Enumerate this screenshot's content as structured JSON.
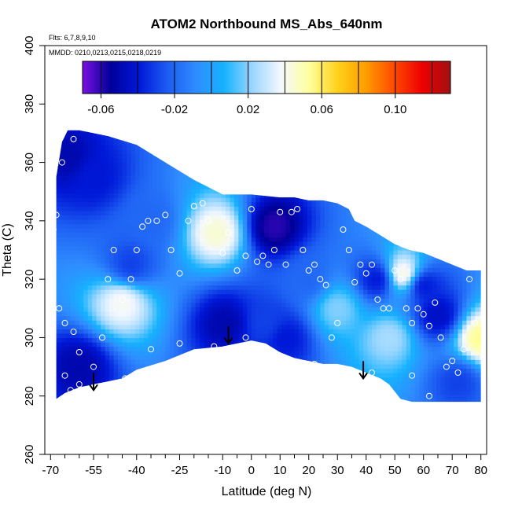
{
  "chart_data": {
    "type": "heatmap",
    "title": "ATOM2 Northbound MS_Abs_640nm",
    "flights_note": "Flts: 6,7,8,9,10",
    "dates_note": "MMDD: 0210,0213,0215,0218,0219",
    "xlabel": "Latitude (deg N)",
    "ylabel": "Theta (C)",
    "xlim": [
      -72,
      82
    ],
    "ylim": [
      260,
      400
    ],
    "x_ticks": [
      -70,
      -55,
      -40,
      -25,
      -10,
      0,
      10,
      20,
      30,
      40,
      50,
      60,
      70,
      80
    ],
    "x_tick_labels": [
      "-70",
      "-55",
      "-40",
      "-25",
      "-10",
      "0",
      "10",
      "20",
      "30",
      "40",
      "50",
      "60",
      "70",
      "80"
    ],
    "x_minor_ticks": [
      -65,
      -60,
      -50,
      -45,
      -35,
      -30,
      -20,
      -15,
      -5,
      5,
      15,
      25,
      35,
      45,
      55,
      65,
      75
    ],
    "y_ticks": [
      260,
      280,
      300,
      320,
      340,
      360,
      380,
      400
    ],
    "y_tick_labels": [
      "260",
      "280",
      "300",
      "320",
      "340",
      "360",
      "380",
      "400"
    ],
    "colorbar": {
      "range": [
        -0.07,
        0.13
      ],
      "ticks": [
        -0.06,
        -0.02,
        0.02,
        0.06,
        0.1
      ],
      "tick_labels": [
        "-0.06",
        "-0.02",
        "0.02",
        "0.06",
        "0.10"
      ],
      "colors": [
        "#7a10e0",
        "#00009a",
        "#0018d8",
        "#1c5cf2",
        "#2f8cff",
        "#16b2ff",
        "#9ad6ff",
        "#f4f8ff",
        "#ffff9e",
        "#ffd21c",
        "#ff9e00",
        "#ff4a00",
        "#ee0000",
        "#a01010"
      ]
    },
    "bottom_boundary": [
      [
        -68,
        279
      ],
      [
        -65,
        281
      ],
      [
        -60,
        283
      ],
      [
        -55,
        284
      ],
      [
        -45,
        286
      ],
      [
        -40,
        289
      ],
      [
        -30,
        292
      ],
      [
        -20,
        296
      ],
      [
        -10,
        297
      ],
      [
        0,
        299
      ],
      [
        5,
        298
      ],
      [
        10,
        295
      ],
      [
        15,
        293
      ],
      [
        20,
        292
      ],
      [
        25,
        291
      ],
      [
        30,
        291
      ],
      [
        35,
        290
      ],
      [
        40,
        288
      ],
      [
        45,
        286
      ],
      [
        48,
        284
      ],
      [
        52,
        279
      ],
      [
        56,
        278
      ],
      [
        62,
        278
      ],
      [
        70,
        278
      ],
      [
        80,
        278
      ]
    ],
    "top_boundary": [
      [
        -68,
        355
      ],
      [
        -66,
        367
      ],
      [
        -64,
        371
      ],
      [
        -60,
        371
      ],
      [
        -55,
        370
      ],
      [
        -50,
        369
      ],
      [
        -40,
        366
      ],
      [
        -30,
        360
      ],
      [
        -20,
        354
      ],
      [
        -10,
        349
      ],
      [
        0,
        349
      ],
      [
        10,
        348
      ],
      [
        15,
        348
      ],
      [
        20,
        347
      ],
      [
        25,
        347
      ],
      [
        30,
        346
      ],
      [
        34,
        344
      ],
      [
        36,
        340
      ],
      [
        40,
        338
      ],
      [
        45,
        335
      ],
      [
        50,
        332
      ],
      [
        55,
        330
      ],
      [
        60,
        329
      ],
      [
        65,
        327
      ],
      [
        70,
        325
      ],
      [
        75,
        323
      ],
      [
        80,
        323
      ]
    ],
    "hotspots": [
      {
        "lat": -64,
        "theta": 362,
        "value": -0.05
      },
      {
        "lat": -60,
        "theta": 290,
        "value": -0.05
      },
      {
        "lat": -55,
        "theta": 355,
        "value": -0.04
      },
      {
        "lat": -45,
        "theta": 312,
        "value": 0.04
      },
      {
        "lat": -42,
        "theta": 325,
        "value": -0.03
      },
      {
        "lat": -35,
        "theta": 340,
        "value": -0.02
      },
      {
        "lat": -12,
        "theta": 336,
        "value": 0.045
      },
      {
        "lat": -9,
        "theta": 305,
        "value": -0.05
      },
      {
        "lat": 5,
        "theta": 305,
        "value": -0.03
      },
      {
        "lat": 8,
        "theta": 338,
        "value": -0.06
      },
      {
        "lat": 12,
        "theta": 300,
        "value": -0.04
      },
      {
        "lat": 20,
        "theta": 320,
        "value": -0.02
      },
      {
        "lat": 30,
        "theta": 310,
        "value": 0.02
      },
      {
        "lat": 44,
        "theta": 320,
        "value": -0.04
      },
      {
        "lat": 48,
        "theta": 300,
        "value": 0.025
      },
      {
        "lat": 53,
        "theta": 322,
        "value": 0.045
      },
      {
        "lat": 60,
        "theta": 318,
        "value": -0.04
      },
      {
        "lat": 65,
        "theta": 308,
        "value": -0.045
      },
      {
        "lat": 72,
        "theta": 285,
        "value": -0.03
      },
      {
        "lat": 80,
        "theta": 300,
        "value": 0.055
      }
    ],
    "sample_points": [
      [
        -66,
        360
      ],
      [
        -62,
        368
      ],
      [
        -68,
        342
      ],
      [
        -69,
        337
      ],
      [
        -67,
        310
      ],
      [
        -65,
        305
      ],
      [
        -62,
        302
      ],
      [
        -60,
        295
      ],
      [
        -65,
        287
      ],
      [
        -60,
        284
      ],
      [
        -55,
        290
      ],
      [
        -52,
        300
      ],
      [
        -50,
        320
      ],
      [
        -48,
        330
      ],
      [
        -45,
        313
      ],
      [
        -42,
        320
      ],
      [
        -40,
        330
      ],
      [
        -38,
        338
      ],
      [
        -36,
        340
      ],
      [
        -33,
        340
      ],
      [
        -30,
        342
      ],
      [
        -28,
        330
      ],
      [
        -25,
        322
      ],
      [
        -22,
        340
      ],
      [
        -20,
        345
      ],
      [
        -17,
        346
      ],
      [
        -15,
        340
      ],
      [
        -10,
        329
      ],
      [
        -8,
        336
      ],
      [
        -5,
        323
      ],
      [
        -2,
        328
      ],
      [
        0,
        344
      ],
      [
        2,
        326
      ],
      [
        4,
        328
      ],
      [
        6,
        325
      ],
      [
        8,
        330
      ],
      [
        10,
        343
      ],
      [
        12,
        325
      ],
      [
        14,
        343
      ],
      [
        16,
        344
      ],
      [
        18,
        330
      ],
      [
        20,
        323
      ],
      [
        22,
        325
      ],
      [
        24,
        320
      ],
      [
        26,
        318
      ],
      [
        28,
        300
      ],
      [
        30,
        305
      ],
      [
        32,
        337
      ],
      [
        34,
        330
      ],
      [
        36,
        319
      ],
      [
        38,
        325
      ],
      [
        40,
        322
      ],
      [
        42,
        325
      ],
      [
        44,
        313
      ],
      [
        46,
        310
      ],
      [
        48,
        310
      ],
      [
        50,
        323
      ],
      [
        52,
        320
      ],
      [
        54,
        310
      ],
      [
        56,
        305
      ],
      [
        58,
        310
      ],
      [
        60,
        308
      ],
      [
        62,
        304
      ],
      [
        64,
        312
      ],
      [
        66,
        300
      ],
      [
        68,
        290
      ],
      [
        70,
        292
      ],
      [
        72,
        288
      ],
      [
        74,
        296
      ],
      [
        76,
        320
      ],
      [
        78,
        305
      ],
      [
        62,
        280
      ],
      [
        56,
        287
      ],
      [
        42,
        288
      ],
      [
        30,
        287
      ],
      [
        22,
        291
      ],
      [
        -2,
        300
      ],
      [
        -13,
        297
      ],
      [
        -25,
        298
      ],
      [
        -35,
        296
      ],
      [
        -44,
        286
      ],
      [
        -58,
        282
      ],
      [
        -63,
        282
      ],
      [
        -52,
        283
      ]
    ],
    "arrows": [
      {
        "lat": -55,
        "theta": 282
      },
      {
        "lat": -8,
        "theta": 298
      },
      {
        "lat": 39,
        "theta": 286
      }
    ]
  }
}
